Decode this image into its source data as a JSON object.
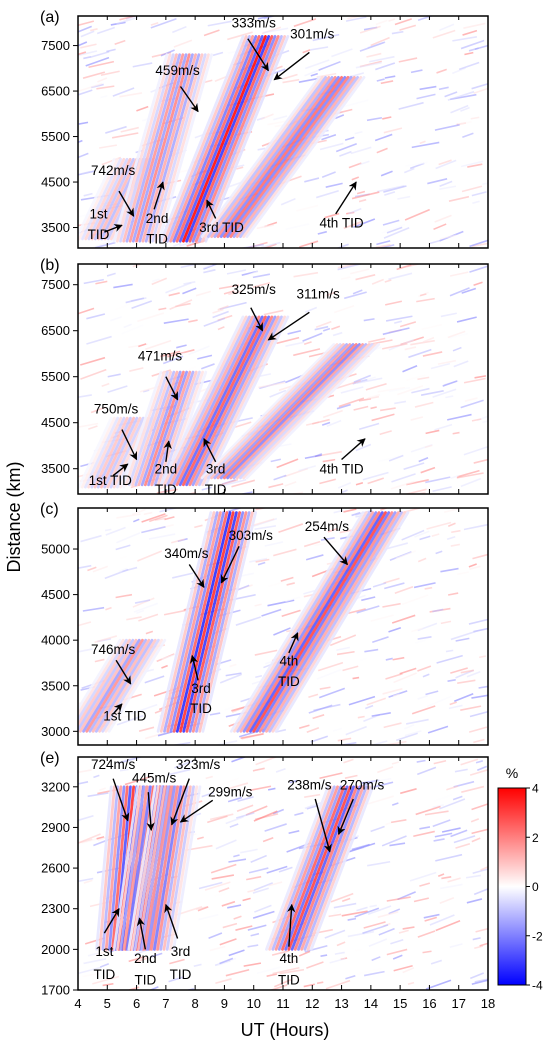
{
  "chart_data": {
    "type": "heatmap",
    "xlabel": "UT (Hours)",
    "ylabel": "Distance (km)",
    "x_ticks": [
      4,
      5,
      6,
      7,
      8,
      9,
      10,
      11,
      12,
      13,
      14,
      15,
      16,
      17,
      18
    ],
    "xlim": [
      4,
      18
    ],
    "colorbar": {
      "unit": "%",
      "min": -4,
      "max": 4,
      "ticks": [
        4,
        2,
        0,
        -2,
        -4
      ],
      "colors": [
        "#0000ff",
        "#ffffff",
        "#ff0000"
      ]
    },
    "panels": [
      {
        "label": "(a)",
        "ylim": [
          3050,
          8150
        ],
        "y_ticks": [
          3500,
          4500,
          5500,
          6500,
          7500
        ],
        "fronts": [
          {
            "name": "1st",
            "x0": 4.7,
            "y0": 3250,
            "x1": 6.0,
            "y1": 5000,
            "strength": 0.35
          },
          {
            "name": "2nd",
            "x0": 6.0,
            "y0": 3200,
            "x1": 7.8,
            "y1": 7300,
            "strength": 0.55
          },
          {
            "name": "3rd",
            "x0": 7.6,
            "y0": 3200,
            "x1": 10.4,
            "y1": 7700,
            "strength": 1.0
          },
          {
            "name": "4th",
            "x0": 9.0,
            "y0": 3300,
            "x1": 13.0,
            "y1": 6800,
            "strength": 0.7
          }
        ],
        "annotations": [
          {
            "text": "742m/s",
            "x": 5.2,
            "y": 4650
          },
          {
            "text": "459m/s",
            "x": 7.4,
            "y": 6850
          },
          {
            "text": "333m/s",
            "x": 10.0,
            "y": 7900
          },
          {
            "text": "301m/s",
            "x": 12.0,
            "y": 7650
          },
          {
            "text": "1st",
            "x": 4.7,
            "y": 3700
          },
          {
            "text": "TID",
            "x": 4.7,
            "y": 3250
          },
          {
            "text": "2nd",
            "x": 6.7,
            "y": 3600
          },
          {
            "text": "TID",
            "x": 6.7,
            "y": 3150
          },
          {
            "text": "3rd TID",
            "x": 8.9,
            "y": 3400
          },
          {
            "text": "4th TID",
            "x": 13.0,
            "y": 3500
          }
        ],
        "arrows": [
          {
            "x0": 5.4,
            "y0": 4300,
            "x1": 5.9,
            "y1": 3750
          },
          {
            "x0": 4.9,
            "y0": 3400,
            "x1": 5.5,
            "y1": 3550
          },
          {
            "x0": 6.6,
            "y0": 3900,
            "x1": 6.9,
            "y1": 4500
          },
          {
            "x0": 7.5,
            "y0": 6600,
            "x1": 8.1,
            "y1": 6050
          },
          {
            "x0": 8.7,
            "y0": 3700,
            "x1": 8.4,
            "y1": 4100
          },
          {
            "x0": 9.8,
            "y0": 7650,
            "x1": 10.5,
            "y1": 6950
          },
          {
            "x0": 11.9,
            "y0": 7350,
            "x1": 10.7,
            "y1": 6750
          },
          {
            "x0": 12.8,
            "y0": 3800,
            "x1": 13.5,
            "y1": 4500
          }
        ]
      },
      {
        "label": "(b)",
        "ylim": [
          2950,
          7950
        ],
        "y_ticks": [
          3500,
          4500,
          5500,
          6500,
          7500
        ],
        "fronts": [
          {
            "name": "1st",
            "x0": 4.8,
            "y0": 3100,
            "x1": 5.9,
            "y1": 4600,
            "strength": 0.3
          },
          {
            "name": "2nd",
            "x0": 6.3,
            "y0": 3150,
            "x1": 7.6,
            "y1": 5600,
            "strength": 0.5
          },
          {
            "name": "3rd",
            "x0": 7.6,
            "y0": 3150,
            "x1": 10.4,
            "y1": 6800,
            "strength": 0.8
          },
          {
            "name": "4th",
            "x0": 9.0,
            "y0": 3300,
            "x1": 13.5,
            "y1": 6200,
            "strength": 0.55
          }
        ],
        "annotations": [
          {
            "text": "750m/s",
            "x": 5.3,
            "y": 4700
          },
          {
            "text": "471m/s",
            "x": 6.8,
            "y": 5850
          },
          {
            "text": "325m/s",
            "x": 10.0,
            "y": 7300
          },
          {
            "text": "311m/s",
            "x": 12.2,
            "y": 7200
          },
          {
            "text": "1st TID",
            "x": 5.1,
            "y": 3150
          },
          {
            "text": "2nd",
            "x": 7.0,
            "y": 3400
          },
          {
            "text": "TID",
            "x": 7.0,
            "y": 2950
          },
          {
            "text": "3rd",
            "x": 8.7,
            "y": 3400
          },
          {
            "text": "TID",
            "x": 8.7,
            "y": 2950
          },
          {
            "text": "4th TID",
            "x": 13.0,
            "y": 3400
          }
        ],
        "arrows": [
          {
            "x0": 5.5,
            "y0": 4350,
            "x1": 6.0,
            "y1": 3700
          },
          {
            "x0": 5.2,
            "y0": 3350,
            "x1": 5.7,
            "y1": 3600
          },
          {
            "x0": 7.0,
            "y0": 3650,
            "x1": 7.1,
            "y1": 4100
          },
          {
            "x0": 7.0,
            "y0": 5500,
            "x1": 7.4,
            "y1": 5000
          },
          {
            "x0": 8.7,
            "y0": 3650,
            "x1": 8.3,
            "y1": 4150
          },
          {
            "x0": 9.9,
            "y0": 7000,
            "x1": 10.3,
            "y1": 6500
          },
          {
            "x0": 11.9,
            "y0": 6900,
            "x1": 10.5,
            "y1": 6300
          },
          {
            "x0": 13.0,
            "y0": 3700,
            "x1": 13.8,
            "y1": 4150
          }
        ]
      },
      {
        "label": "(c)",
        "ylim": [
          2850,
          5450
        ],
        "y_ticks": [
          3000,
          3500,
          4000,
          4500,
          5000
        ],
        "fronts": [
          {
            "name": "1st",
            "x0": 4.3,
            "y0": 3000,
            "x1": 6.2,
            "y1": 4000,
            "strength": 0.45
          },
          {
            "name": "3rd",
            "x0": 7.5,
            "y0": 3000,
            "x1": 9.3,
            "y1": 5400,
            "strength": 1.0
          },
          {
            "name": "4th",
            "x0": 10.0,
            "y0": 3000,
            "x1": 14.5,
            "y1": 5400,
            "strength": 0.8
          }
        ],
        "annotations": [
          {
            "text": "746m/s",
            "x": 5.2,
            "y": 3850
          },
          {
            "text": "340m/s",
            "x": 7.7,
            "y": 4900
          },
          {
            "text": "303m/s",
            "x": 9.9,
            "y": 5100
          },
          {
            "text": "254m/s",
            "x": 12.5,
            "y": 5200
          },
          {
            "text": "1st TID",
            "x": 5.6,
            "y": 3120
          },
          {
            "text": "3rd",
            "x": 8.2,
            "y": 3420
          },
          {
            "text": "TID",
            "x": 8.2,
            "y": 3200
          },
          {
            "text": "4th",
            "x": 11.2,
            "y": 3720
          },
          {
            "text": "TID",
            "x": 11.2,
            "y": 3500
          }
        ],
        "arrows": [
          {
            "x0": 5.3,
            "y0": 3780,
            "x1": 5.8,
            "y1": 3520
          },
          {
            "x0": 5.2,
            "y0": 3190,
            "x1": 5.5,
            "y1": 3300
          },
          {
            "x0": 7.8,
            "y0": 4830,
            "x1": 8.3,
            "y1": 4580
          },
          {
            "x0": 9.5,
            "y0": 5030,
            "x1": 8.9,
            "y1": 4630
          },
          {
            "x0": 8.1,
            "y0": 3560,
            "x1": 7.9,
            "y1": 3830
          },
          {
            "x0": 12.4,
            "y0": 5130,
            "x1": 13.2,
            "y1": 4830
          },
          {
            "x0": 11.2,
            "y0": 3860,
            "x1": 11.5,
            "y1": 4080
          }
        ]
      },
      {
        "label": "(e)",
        "ylim": [
          1700,
          3420
        ],
        "y_ticks": [
          1700,
          2000,
          2300,
          2600,
          2900,
          3200
        ],
        "fronts": [
          {
            "name": "1st",
            "x0": 5.4,
            "y0": 2000,
            "x1": 5.9,
            "y1": 3200,
            "strength": 1.0
          },
          {
            "name": "2nd",
            "x0": 6.0,
            "y0": 2000,
            "x1": 6.8,
            "y1": 3200,
            "strength": 0.9
          },
          {
            "name": "3rd",
            "x0": 6.5,
            "y0": 2000,
            "x1": 7.4,
            "y1": 3200,
            "strength": 0.6
          },
          {
            "name": "4th",
            "x0": 11.2,
            "y0": 2000,
            "x1": 13.3,
            "y1": 3200,
            "strength": 0.85
          }
        ],
        "annotations": [
          {
            "text": "724m/s",
            "x": 5.2,
            "y": 3330
          },
          {
            "text": "445m/s",
            "x": 6.6,
            "y": 3230
          },
          {
            "text": "323m/s",
            "x": 8.1,
            "y": 3330
          },
          {
            "text": "299m/s",
            "x": 9.2,
            "y": 3130
          },
          {
            "text": "238m/s",
            "x": 11.9,
            "y": 3180
          },
          {
            "text": "270m/s",
            "x": 13.7,
            "y": 3180
          },
          {
            "text": "1st",
            "x": 4.9,
            "y": 1950
          },
          {
            "text": "TID",
            "x": 4.9,
            "y": 1780
          },
          {
            "text": "2nd",
            "x": 6.3,
            "y": 1900
          },
          {
            "text": "TID",
            "x": 6.3,
            "y": 1740
          },
          {
            "text": "3rd",
            "x": 7.5,
            "y": 1950
          },
          {
            "text": "TID",
            "x": 7.5,
            "y": 1780
          },
          {
            "text": "4th",
            "x": 11.2,
            "y": 1900
          },
          {
            "text": "TID",
            "x": 11.2,
            "y": 1740
          }
        ],
        "arrows": [
          {
            "x0": 5.2,
            "y0": 3260,
            "x1": 5.7,
            "y1": 2950
          },
          {
            "x0": 4.9,
            "y0": 2120,
            "x1": 5.4,
            "y1": 2300
          },
          {
            "x0": 6.4,
            "y0": 3160,
            "x1": 6.5,
            "y1": 2880
          },
          {
            "x0": 7.8,
            "y0": 3260,
            "x1": 7.2,
            "y1": 2920
          },
          {
            "x0": 6.3,
            "y0": 2000,
            "x1": 6.1,
            "y1": 2230
          },
          {
            "x0": 8.6,
            "y0": 3100,
            "x1": 7.5,
            "y1": 2940
          },
          {
            "x0": 7.4,
            "y0": 2080,
            "x1": 7.0,
            "y1": 2330
          },
          {
            "x0": 12.1,
            "y0": 3110,
            "x1": 12.6,
            "y1": 2720
          },
          {
            "x0": 13.4,
            "y0": 3110,
            "x1": 12.9,
            "y1": 2850
          },
          {
            "x0": 11.2,
            "y0": 2020,
            "x1": 11.3,
            "y1": 2330
          }
        ]
      }
    ]
  }
}
